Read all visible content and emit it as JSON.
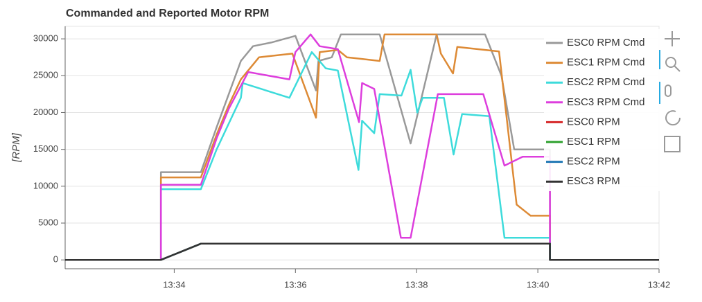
{
  "chart_data": {
    "type": "line",
    "title": "Commanded and Reported Motor RPM",
    "y_label": "[RPM]",
    "xlim": [
      32.2,
      42.0
    ],
    "ylim": [
      -1200,
      31700
    ],
    "xticks": [
      {
        "value": 34,
        "label": "13:34"
      },
      {
        "value": 36,
        "label": "13:36"
      },
      {
        "value": 38,
        "label": "13:38"
      },
      {
        "value": 40,
        "label": "13:40"
      },
      {
        "value": 42,
        "label": "13:42"
      }
    ],
    "yticks": [
      0,
      5000,
      10000,
      15000,
      20000,
      25000,
      30000
    ],
    "grid": true,
    "series": [
      {
        "name": "ESC0 RPM Cmd",
        "color": "#999999",
        "x": [
          32.2,
          33.78,
          33.78,
          34.44,
          34.7,
          34.9,
          35.1,
          35.3,
          35.6,
          36.0,
          36.34,
          36.38,
          36.6,
          36.75,
          37.39,
          37.9,
          38.33,
          39.13,
          39.4,
          39.61,
          40.2,
          40.2,
          42.0
        ],
        "values": [
          0,
          0,
          11900,
          11900,
          18000,
          22500,
          27000,
          29000,
          29500,
          30400,
          23000,
          27000,
          27500,
          30600,
          30600,
          15800,
          30600,
          30600,
          25000,
          15000,
          15000,
          0,
          0
        ]
      },
      {
        "name": "ESC1 RPM Cmd",
        "color": "#dd8a35",
        "x": [
          32.2,
          33.78,
          33.78,
          34.44,
          34.7,
          34.9,
          35.1,
          35.4,
          35.95,
          36.34,
          36.4,
          36.7,
          36.85,
          37.39,
          37.47,
          38.33,
          38.4,
          38.6,
          38.67,
          39.36,
          39.65,
          39.88,
          40.2,
          40.2,
          42.0
        ],
        "values": [
          0,
          0,
          11200,
          11200,
          17000,
          21000,
          24500,
          27500,
          28000,
          19300,
          28200,
          28500,
          27500,
          27000,
          30600,
          30600,
          28000,
          25300,
          28900,
          28300,
          7500,
          6000,
          6000,
          0,
          0
        ]
      },
      {
        "name": "ESC2 RPM Cmd",
        "color": "#3ddbdb",
        "x": [
          32.2,
          33.78,
          33.78,
          34.44,
          34.7,
          34.9,
          35.1,
          35.13,
          35.9,
          36.27,
          36.5,
          36.7,
          37.04,
          37.1,
          37.3,
          37.39,
          37.75,
          37.9,
          38.01,
          38.1,
          38.45,
          38.61,
          38.75,
          39.2,
          39.45,
          40.2,
          40.2,
          42.0
        ],
        "values": [
          0,
          0,
          9600,
          9600,
          15000,
          18500,
          22000,
          24000,
          22000,
          28200,
          26000,
          25700,
          12200,
          18900,
          17200,
          22500,
          22300,
          25800,
          20000,
          22000,
          22000,
          14300,
          19800,
          19500,
          3000,
          3000,
          0,
          0
        ]
      },
      {
        "name": "ESC3 RPM Cmd",
        "color": "#dd3edd",
        "x": [
          32.2,
          33.78,
          33.78,
          34.44,
          34.7,
          34.9,
          35.22,
          35.9,
          36.0,
          36.25,
          36.4,
          36.7,
          37.05,
          37.1,
          37.3,
          37.74,
          37.9,
          38.35,
          39.1,
          39.45,
          39.75,
          40.2,
          40.2,
          42.0
        ],
        "values": [
          0,
          0,
          10200,
          10200,
          16500,
          20500,
          25500,
          24500,
          28200,
          30600,
          29000,
          28600,
          18700,
          24000,
          23200,
          3000,
          3000,
          22500,
          22500,
          12800,
          14000,
          14000,
          0,
          0
        ]
      },
      {
        "name": "ESC0 RPM",
        "color": "#d62728",
        "x": [
          32.2,
          33.78,
          34.44,
          40.2,
          40.2,
          42.0
        ],
        "values": [
          0,
          0,
          2200,
          2200,
          0,
          0
        ]
      },
      {
        "name": "ESC1 RPM",
        "color": "#2ca02c",
        "x": [
          32.2,
          33.78,
          34.44,
          40.2,
          40.2,
          42.0
        ],
        "values": [
          0,
          0,
          2200,
          2200,
          0,
          0
        ]
      },
      {
        "name": "ESC2 RPM",
        "color": "#1f77b4",
        "x": [
          32.2,
          33.78,
          34.44,
          40.2,
          40.2,
          42.0
        ],
        "values": [
          0,
          0,
          2200,
          2200,
          0,
          0
        ]
      },
      {
        "name": "ESC3 RPM",
        "color": "#333333",
        "x": [
          32.2,
          33.78,
          34.44,
          40.2,
          40.2,
          42.0
        ],
        "values": [
          0,
          0,
          2200,
          2200,
          0,
          0
        ]
      }
    ]
  }
}
